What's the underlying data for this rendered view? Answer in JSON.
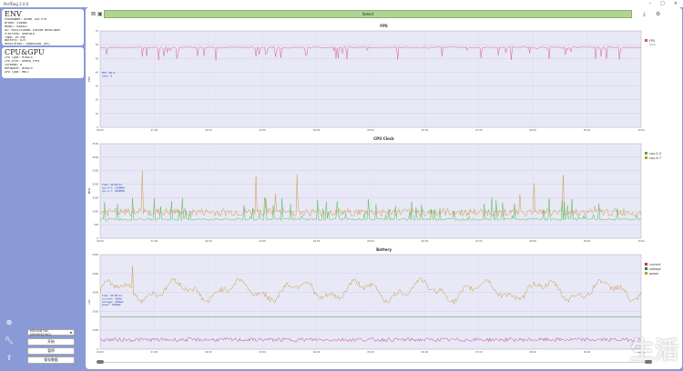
{
  "window": {
    "title": "PerfDog 2.0.0"
  },
  "env_panel": {
    "title": "ENV",
    "lines": [
      "PhoneName: REDMI 10X Pro",
      "Brand: Xiaomi",
      "Model: M2004J",
      "OS: miui/xiaomi custom developer",
      "Platform: Android",
      "Temp: 39.5℃",
      "Battery: 62%",
      "Resolution: 1080x2400 (Hz)"
    ]
  },
  "cpu_panel": {
    "title": "CPU&GPU",
    "lines": [
      "CPU Type: MT6875",
      "CPU Arch: ARMv8_FP64",
      "CoreNum: 8",
      "Hardware: mt6875",
      "GPU Type: Mali"
    ]
  },
  "sidebar": {
    "device_select": "M2004J7AC (M2004J7AC)",
    "buttons": [
      "开始",
      "暂停",
      "保存数据"
    ],
    "icons": [
      "add-circle-icon",
      "wrench-icon",
      "upload-icon"
    ]
  },
  "toolbar": {
    "session_label": "Select",
    "icons": [
      "close-icon",
      "save-icon",
      "download-icon",
      "settings-icon"
    ]
  },
  "colors": {
    "fps": "#d84f86",
    "cpu0": "#3cb43c",
    "cpu7": "#c8962a",
    "current": "#c82a6e",
    "voltage": "#2a8a2a",
    "power": "#c8962a",
    "plot_bg": "#e8e8f7"
  },
  "chart_data": [
    {
      "type": "line",
      "title": "FPS",
      "ylabel": "FPS",
      "ylim": [
        0,
        70
      ],
      "legend": [
        "FPS"
      ],
      "legend_sub": "Jank",
      "annotation": [
        "FPS: 60.0",
        "Jank: 0"
      ],
      "series": [
        {
          "name": "FPS",
          "baseline": 58,
          "min_dip": 48
        }
      ],
      "yticks": [
        "70",
        "60",
        "50",
        "40",
        "30",
        "20",
        "10",
        "0"
      ],
      "xticks": [
        "00:00",
        "01:00",
        "02:00",
        "03:00",
        "04:00",
        "05:00",
        "06:00",
        "07:00",
        "08:00",
        "09:00",
        "10:00"
      ]
    },
    {
      "type": "line",
      "title": "CPU Clock",
      "ylabel": "MHz",
      "ylim": [
        0,
        3500
      ],
      "legend": [
        "cpu-0-3",
        "cpu-4-7"
      ],
      "annotation": [
        "Time: 00:05:21",
        "cpu-0-3: 1200MHz",
        "cpu-4-7: 2000MHz"
      ],
      "series": [
        {
          "name": "cpu-0-3",
          "baseline": 700,
          "max_spike": 1500
        },
        {
          "name": "cpu-4-7",
          "baseline": 900,
          "max_spike": 2600
        }
      ],
      "yticks": [
        "3500",
        "3000",
        "2500",
        "2000",
        "1500",
        "1000",
        "500",
        "0"
      ],
      "xticks": [
        "00:00",
        "01:00",
        "02:00",
        "03:00",
        "04:00",
        "05:00",
        "06:00",
        "07:00",
        "08:00",
        "09:00",
        "10:00"
      ]
    },
    {
      "type": "line",
      "title": "Battery",
      "ylabel": "mA",
      "ylim": [
        0,
        5000
      ],
      "legend": [
        "current",
        "voltage",
        "power"
      ],
      "annotation": [
        "Time: 00:05:21",
        "current: 420mA",
        "voltage: 4300mV",
        "power: 3000mW"
      ],
      "series": [
        {
          "name": "current",
          "baseline": 500
        },
        {
          "name": "voltage",
          "baseline": 1700
        },
        {
          "name": "power",
          "baseline": 3100
        }
      ],
      "yticks": [
        "5000",
        "4000",
        "3000",
        "2000",
        "1000",
        "0"
      ],
      "xticks": [
        "00:00",
        "01:00",
        "02:00",
        "03:00",
        "04:00",
        "05:00",
        "06:00",
        "07:00",
        "08:00",
        "09:00",
        "10:00"
      ]
    }
  ],
  "watermark": {
    "text": "生活",
    "url": "www.cnsilife.net"
  }
}
